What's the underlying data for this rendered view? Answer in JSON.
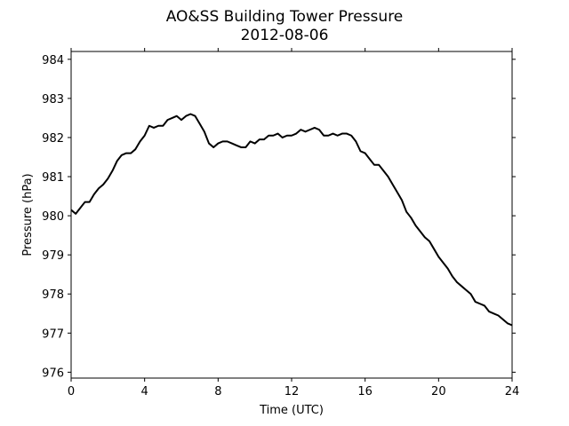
{
  "chart_data": {
    "type": "line",
    "title": "AO&SS Building Tower Pressure",
    "subtitle": "2012-08-06",
    "xlabel": "Time (UTC)",
    "ylabel": "Pressure (hPa)",
    "xlim": [
      0,
      24
    ],
    "ylim": [
      975.85,
      984.2
    ],
    "xticks": [
      0,
      4,
      8,
      12,
      16,
      20,
      24
    ],
    "yticks": [
      976,
      977,
      978,
      979,
      980,
      981,
      982,
      983,
      984
    ],
    "grid": false,
    "line_color": "#000000",
    "series": [
      {
        "x": [
          0,
          0.25,
          0.5,
          0.75,
          1.0,
          1.25,
          1.5,
          1.75,
          2.0,
          2.25,
          2.5,
          2.75,
          3.0,
          3.25,
          3.5,
          3.75,
          4.0,
          4.25,
          4.5,
          4.75,
          5.0,
          5.25,
          5.5,
          5.75,
          6.0,
          6.25,
          6.5,
          6.75,
          7.0,
          7.25,
          7.5,
          7.75,
          8.0,
          8.25,
          8.5,
          8.75,
          9.0,
          9.25,
          9.5,
          9.75,
          10.0,
          10.25,
          10.5,
          10.75,
          11.0,
          11.25,
          11.5,
          11.75,
          12.0,
          12.25,
          12.5,
          12.75,
          13.0,
          13.25,
          13.5,
          13.75,
          14.0,
          14.25,
          14.5,
          14.75,
          15.0,
          15.25,
          15.5,
          15.75,
          16.0,
          16.25,
          16.5,
          16.75,
          17.0,
          17.25,
          17.5,
          17.75,
          18.0,
          18.25,
          18.5,
          18.75,
          19.0,
          19.25,
          19.5,
          19.75,
          20.0,
          20.25,
          20.5,
          20.75,
          21.0,
          21.25,
          21.5,
          21.75,
          22.0,
          22.25,
          22.5,
          22.75,
          23.0,
          23.25,
          23.5,
          23.75,
          24.0
        ],
        "y": [
          980.15,
          980.05,
          980.2,
          980.35,
          980.35,
          980.55,
          980.7,
          980.8,
          980.95,
          981.15,
          981.4,
          981.55,
          981.6,
          981.6,
          981.7,
          981.9,
          982.05,
          982.3,
          982.25,
          982.3,
          982.3,
          982.45,
          982.5,
          982.55,
          982.45,
          982.55,
          982.6,
          982.55,
          982.35,
          982.15,
          981.85,
          981.75,
          981.85,
          981.9,
          981.9,
          981.85,
          981.8,
          981.75,
          981.75,
          981.9,
          981.85,
          981.95,
          981.95,
          982.05,
          982.05,
          982.1,
          982.0,
          982.05,
          982.05,
          982.1,
          982.2,
          982.15,
          982.2,
          982.25,
          982.2,
          982.05,
          982.05,
          982.1,
          982.05,
          982.1,
          982.1,
          982.05,
          981.9,
          981.65,
          981.6,
          981.45,
          981.3,
          981.3,
          981.15,
          981.0,
          980.8,
          980.6,
          980.4,
          980.1,
          979.95,
          979.75,
          979.6,
          979.45,
          979.35,
          979.15,
          978.95,
          978.8,
          978.65,
          978.45,
          978.3,
          978.2,
          978.1,
          978.0,
          977.8,
          977.75,
          977.7,
          977.55,
          977.5,
          977.45,
          977.35,
          977.25,
          977.2
        ]
      }
    ]
  }
}
